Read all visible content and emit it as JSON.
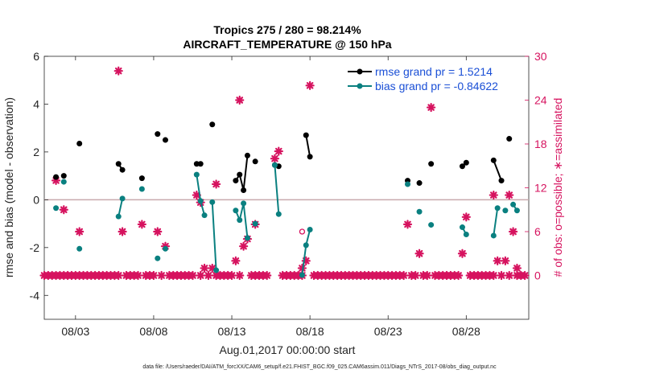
{
  "chart_data": {
    "type": "line",
    "title": "Tropics 275 / 280 = 98.214%",
    "subtitle": "AIRCRAFT_TEMPERATURE @ 150 hPa",
    "xlabel": "Aug.01,2017 00:00:00 start",
    "ylabel_left": "rmse and bias (model - observation)",
    "ylabel_right": "# of obs: o=possible; ∗=assimilated",
    "footnote": "data file: /Users/raeder/DAI/ATM_forcXX/CAM6_setup/f.e21.FHIST_BGC.f09_025.CAM6assim.011/Diags_NTrS_2017-08/obs_diag_output.nc",
    "xlim": [
      1,
      32
    ],
    "ylim_left": [
      -5,
      6
    ],
    "ylim_right": [
      -6,
      30
    ],
    "x_ticks": [
      3,
      8,
      13,
      18,
      23,
      28
    ],
    "x_tick_labels": [
      "08/03",
      "08/08",
      "08/13",
      "08/18",
      "08/23",
      "08/28"
    ],
    "y_ticks_left": [
      -4,
      -2,
      0,
      2,
      4,
      6
    ],
    "y_tick_labels_left": [
      "-4",
      "-2",
      "0",
      "2",
      "4",
      "6"
    ],
    "y_ticks_right": [
      0,
      6,
      12,
      18,
      24,
      30
    ],
    "y_tick_labels_right": [
      "0",
      "6",
      "12",
      "18",
      "24",
      "30"
    ],
    "zero_line": 0,
    "colors": {
      "rmse": "#000000",
      "bias": "#0a8080",
      "obs": "#d6135f",
      "zero": "#c9a9ad",
      "legend_text": "#1a4fd6"
    },
    "series": [
      {
        "name": "rmse grand pr = 1.5214",
        "color": "#000000",
        "segments": [
          [
            [
              1.75,
              0.95
            ]
          ],
          [
            [
              2.25,
              1.0
            ]
          ],
          [
            [
              3.25,
              2.35
            ]
          ],
          [
            [
              5.75,
              1.5
            ],
            [
              6.0,
              1.25
            ]
          ],
          [
            [
              7.25,
              0.9
            ]
          ],
          [
            [
              8.25,
              2.75
            ]
          ],
          [
            [
              8.75,
              2.5
            ]
          ],
          [
            [
              10.75,
              1.5
            ],
            [
              11.0,
              1.5
            ]
          ],
          [
            [
              11.75,
              3.15
            ]
          ],
          [
            [
              13.25,
              0.8
            ],
            [
              13.5,
              1.05
            ],
            [
              13.75,
              0.4
            ],
            [
              14.0,
              1.85
            ]
          ],
          [
            [
              14.5,
              1.6
            ]
          ],
          [
            [
              15.75,
              1.45
            ],
            [
              16.0,
              1.4
            ]
          ],
          [
            [
              17.75,
              2.7
            ],
            [
              18.0,
              1.8
            ]
          ],
          [
            [
              24.25,
              0.8
            ]
          ],
          [
            [
              25.0,
              0.7
            ]
          ],
          [
            [
              25.75,
              1.5
            ]
          ],
          [
            [
              27.75,
              1.4
            ],
            [
              28.0,
              1.55
            ]
          ],
          [
            [
              29.75,
              1.65
            ],
            [
              30.25,
              0.8
            ]
          ],
          [
            [
              30.75,
              2.55
            ]
          ]
        ]
      },
      {
        "name": "bias grand pr = -0.84622",
        "color": "#0a8080",
        "segments": [
          [
            [
              1.75,
              -0.35
            ]
          ],
          [
            [
              2.25,
              0.75
            ]
          ],
          [
            [
              3.25,
              -2.05
            ]
          ],
          [
            [
              5.75,
              -0.7
            ],
            [
              6.0,
              0.05
            ]
          ],
          [
            [
              7.25,
              0.45
            ]
          ],
          [
            [
              8.25,
              -2.45
            ]
          ],
          [
            [
              8.75,
              -2.05
            ]
          ],
          [
            [
              10.75,
              1.05
            ],
            [
              11.0,
              -0.05
            ],
            [
              11.25,
              -0.65
            ]
          ],
          [
            [
              11.75,
              -0.1
            ],
            [
              12.0,
              -2.95
            ]
          ],
          [
            [
              13.25,
              -0.45
            ],
            [
              13.5,
              -0.85
            ],
            [
              13.75,
              -0.15
            ],
            [
              14.0,
              -1.6
            ]
          ],
          [
            [
              14.5,
              -1.0
            ]
          ],
          [
            [
              15.75,
              1.45
            ],
            [
              16.0,
              -0.6
            ]
          ],
          [
            [
              17.5,
              -3.15
            ],
            [
              17.75,
              -1.9
            ],
            [
              18.0,
              -1.25
            ]
          ],
          [
            [
              24.25,
              0.65
            ]
          ],
          [
            [
              25.0,
              -0.5
            ]
          ],
          [
            [
              25.75,
              -1.05
            ]
          ],
          [
            [
              27.75,
              -1.15
            ],
            [
              28.0,
              -1.45
            ]
          ],
          [
            [
              29.75,
              -1.5
            ],
            [
              30.0,
              -0.35
            ]
          ],
          [
            [
              30.5,
              -0.45
            ]
          ],
          [
            [
              31.0,
              -0.2
            ],
            [
              31.25,
              -0.45
            ]
          ]
        ]
      }
    ],
    "obs_assimilated_right_axis": {
      "name": "assimilated observations",
      "marker": "asterisk",
      "zero_x": [
        1.0,
        1.25,
        1.5,
        1.75,
        2.0,
        2.25,
        2.5,
        2.75,
        3.0,
        3.25,
        3.5,
        3.75,
        4.0,
        4.25,
        4.5,
        4.75,
        5.0,
        5.25,
        5.5,
        5.75,
        6.25,
        6.5,
        6.75,
        7.0,
        7.5,
        7.75,
        8.0,
        8.5,
        9.0,
        9.25,
        9.5,
        9.75,
        10.0,
        10.25,
        10.5,
        11.0,
        11.5,
        12.0,
        12.25,
        12.5,
        12.75,
        13.0,
        13.5,
        14.25,
        14.5,
        14.75,
        15.0,
        15.25,
        16.25,
        16.5,
        16.75,
        17.0,
        17.25,
        17.5,
        18.25,
        18.5,
        18.75,
        19.0,
        19.25,
        19.5,
        19.75,
        20.0,
        20.25,
        20.5,
        20.75,
        21.0,
        21.25,
        21.5,
        21.75,
        22.0,
        22.25,
        22.5,
        22.75,
        23.0,
        23.25,
        23.5,
        23.75,
        24.0,
        24.5,
        24.75,
        25.25,
        25.5,
        26.0,
        26.25,
        26.5,
        26.75,
        27.0,
        27.25,
        27.5,
        28.25,
        28.5,
        28.75,
        29.0,
        29.25,
        29.5,
        29.75,
        30.25,
        30.75,
        31.25,
        31.5,
        31.75
      ],
      "points": [
        [
          1.75,
          13
        ],
        [
          2.25,
          9
        ],
        [
          3.25,
          6
        ],
        [
          5.75,
          28
        ],
        [
          6.0,
          6
        ],
        [
          7.25,
          7
        ],
        [
          8.25,
          6
        ],
        [
          8.75,
          4
        ],
        [
          10.75,
          11
        ],
        [
          11.0,
          10
        ],
        [
          11.25,
          1
        ],
        [
          11.75,
          1
        ],
        [
          12.0,
          12.5
        ],
        [
          13.25,
          2
        ],
        [
          13.5,
          24
        ],
        [
          13.75,
          4
        ],
        [
          14.0,
          5
        ],
        [
          14.5,
          7
        ],
        [
          15.75,
          16
        ],
        [
          16.0,
          17
        ],
        [
          17.5,
          1
        ],
        [
          17.75,
          2
        ],
        [
          18.0,
          26
        ],
        [
          24.25,
          7
        ],
        [
          25.0,
          3
        ],
        [
          25.75,
          23
        ],
        [
          27.75,
          3
        ],
        [
          28.0,
          8
        ],
        [
          29.75,
          11
        ],
        [
          30.0,
          2
        ],
        [
          30.5,
          2
        ],
        [
          30.75,
          11
        ],
        [
          31.0,
          6
        ],
        [
          31.25,
          1
        ]
      ]
    },
    "obs_possible_right_axis": {
      "name": "possible observations",
      "marker": "circle",
      "points": [
        [
          17.5,
          6
        ]
      ]
    }
  }
}
